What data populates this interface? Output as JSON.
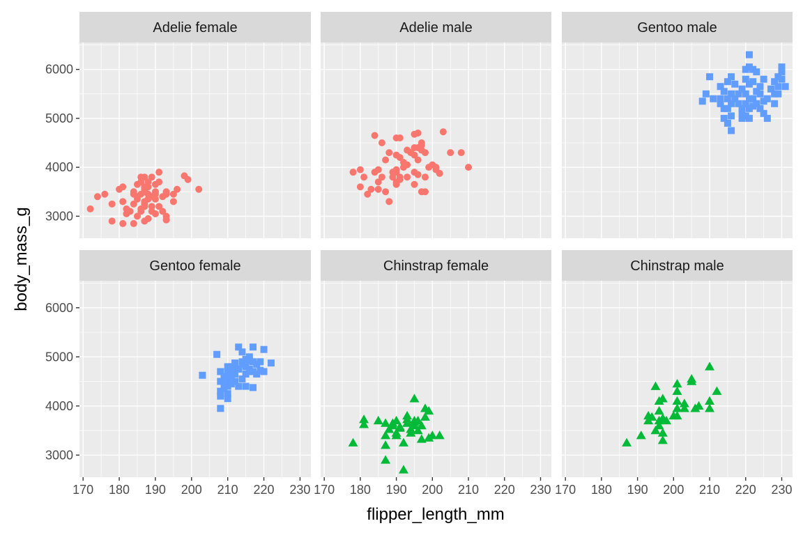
{
  "chart_data": {
    "type": "scatter",
    "xlabel": "flipper_length_mm",
    "ylabel": "body_mass_g",
    "xlim": [
      169,
      233
    ],
    "ylim": [
      2550,
      6550
    ],
    "x_ticks": [
      170,
      180,
      190,
      200,
      210,
      220,
      230
    ],
    "y_ticks": [
      3000,
      4000,
      5000,
      6000
    ],
    "grid": true,
    "legend": "none",
    "colors": {
      "Adelie": "#F8766D",
      "Gentoo": "#619CFF",
      "Chinstrap": "#00BA38"
    },
    "shapes": {
      "Adelie": "circle",
      "Gentoo": "square",
      "Chinstrap": "triangle"
    },
    "panels": [
      {
        "label": "Adelie female",
        "species": "Adelie",
        "points": [
          [
            172,
            3150
          ],
          [
            174,
            3400
          ],
          [
            176,
            3450
          ],
          [
            178,
            3250
          ],
          [
            178,
            2900
          ],
          [
            180,
            3550
          ],
          [
            181,
            3600
          ],
          [
            181,
            3300
          ],
          [
            181,
            2850
          ],
          [
            182,
            3150
          ],
          [
            182,
            3050
          ],
          [
            183,
            3100
          ],
          [
            184,
            3250
          ],
          [
            184,
            3500
          ],
          [
            184,
            3450
          ],
          [
            184,
            2850
          ],
          [
            185,
            3650
          ],
          [
            185,
            3000
          ],
          [
            185,
            3350
          ],
          [
            185,
            3400
          ],
          [
            186,
            3700
          ],
          [
            186,
            3800
          ],
          [
            186,
            3150
          ],
          [
            186,
            3450
          ],
          [
            186,
            3100
          ],
          [
            187,
            3800
          ],
          [
            187,
            3500
          ],
          [
            187,
            3300
          ],
          [
            187,
            3550
          ],
          [
            187,
            3250
          ],
          [
            187,
            3200
          ],
          [
            187,
            2900
          ],
          [
            187,
            3600
          ],
          [
            188,
            3700
          ],
          [
            188,
            3350
          ],
          [
            188,
            3450
          ],
          [
            188,
            2950
          ],
          [
            188,
            3600
          ],
          [
            189,
            3800
          ],
          [
            189,
            3200
          ],
          [
            189,
            3400
          ],
          [
            189,
            3100
          ],
          [
            190,
            3450
          ],
          [
            190,
            3500
          ],
          [
            190,
            3050
          ],
          [
            190,
            3650
          ],
          [
            190,
            3350
          ],
          [
            191,
            3900
          ],
          [
            191,
            3700
          ],
          [
            191,
            3200
          ],
          [
            192,
            3100
          ],
          [
            192,
            3400
          ],
          [
            193,
            3500
          ],
          [
            193,
            3450
          ],
          [
            193,
            3000
          ],
          [
            193,
            2925
          ],
          [
            195,
            3300
          ],
          [
            195,
            3450
          ],
          [
            196,
            3550
          ],
          [
            198,
            3825
          ],
          [
            199,
            3750
          ],
          [
            202,
            3550
          ]
        ]
      },
      {
        "label": "Adelie male",
        "species": "Adelie",
        "points": [
          [
            178,
            3900
          ],
          [
            180,
            3950
          ],
          [
            180,
            3600
          ],
          [
            181,
            3800
          ],
          [
            182,
            3450
          ],
          [
            183,
            3550
          ],
          [
            184,
            4650
          ],
          [
            184,
            3900
          ],
          [
            185,
            3950
          ],
          [
            185,
            3700
          ],
          [
            185,
            3550
          ],
          [
            186,
            3800
          ],
          [
            186,
            4500
          ],
          [
            187,
            4150
          ],
          [
            187,
            3500
          ],
          [
            188,
            3300
          ],
          [
            188,
            4300
          ],
          [
            189,
            3900
          ],
          [
            189,
            3800
          ],
          [
            190,
            4600
          ],
          [
            190,
            3950
          ],
          [
            190,
            3700
          ],
          [
            190,
            3650
          ],
          [
            190,
            4250
          ],
          [
            190,
            3900
          ],
          [
            191,
            4600
          ],
          [
            191,
            3750
          ],
          [
            191,
            3800
          ],
          [
            191,
            4200
          ],
          [
            192,
            4000
          ],
          [
            192,
            4100
          ],
          [
            193,
            4350
          ],
          [
            193,
            4050
          ],
          [
            193,
            3800
          ],
          [
            194,
            4300
          ],
          [
            195,
            4675
          ],
          [
            195,
            4400
          ],
          [
            195,
            3900
          ],
          [
            195,
            3650
          ],
          [
            195,
            4250
          ],
          [
            196,
            4700
          ],
          [
            196,
            4150
          ],
          [
            196,
            4400
          ],
          [
            196,
            3850
          ],
          [
            197,
            4450
          ],
          [
            197,
            4350
          ],
          [
            197,
            3500
          ],
          [
            197,
            4500
          ],
          [
            198,
            3500
          ],
          [
            198,
            4300
          ],
          [
            198,
            3800
          ],
          [
            199,
            4000
          ],
          [
            200,
            4050
          ],
          [
            201,
            4000
          ],
          [
            201,
            3950
          ],
          [
            202,
            3875
          ],
          [
            203,
            4725
          ],
          [
            205,
            4300
          ],
          [
            208,
            4300
          ],
          [
            210,
            4000
          ]
        ]
      },
      {
        "label": "Gentoo male",
        "species": "Gentoo",
        "points": [
          [
            208,
            5350
          ],
          [
            209,
            5500
          ],
          [
            210,
            5850
          ],
          [
            211,
            5400
          ],
          [
            213,
            5400
          ],
          [
            213,
            5650
          ],
          [
            213,
            5300
          ],
          [
            214,
            5550
          ],
          [
            214,
            5000
          ],
          [
            214,
            5200
          ],
          [
            215,
            5200
          ],
          [
            215,
            4900
          ],
          [
            215,
            5750
          ],
          [
            215,
            5400
          ],
          [
            216,
            5050
          ],
          [
            216,
            5300
          ],
          [
            216,
            5500
          ],
          [
            216,
            4750
          ],
          [
            216,
            5850
          ],
          [
            217,
            5700
          ],
          [
            217,
            5400
          ],
          [
            218,
            5300
          ],
          [
            218,
            5500
          ],
          [
            219,
            5000
          ],
          [
            219,
            5200
          ],
          [
            219,
            5600
          ],
          [
            219,
            5100
          ],
          [
            220,
            5800
          ],
          [
            220,
            5050
          ],
          [
            220,
            5300
          ],
          [
            220,
            5500
          ],
          [
            220,
            6000
          ],
          [
            221,
            5400
          ],
          [
            221,
            6300
          ],
          [
            221,
            5200
          ],
          [
            221,
            5000
          ],
          [
            221,
            5700
          ],
          [
            221,
            6050
          ],
          [
            222,
            5750
          ],
          [
            222,
            5400
          ],
          [
            222,
            5250
          ],
          [
            222,
            6000
          ],
          [
            223,
            5550
          ],
          [
            223,
            5300
          ],
          [
            223,
            5950
          ],
          [
            224,
            5650
          ],
          [
            224,
            5500
          ],
          [
            224,
            5200
          ],
          [
            225,
            5100
          ],
          [
            225,
            5800
          ],
          [
            225,
            5350
          ],
          [
            226,
            5000
          ],
          [
            226,
            5400
          ],
          [
            227,
            5600
          ],
          [
            228,
            5500
          ],
          [
            228,
            5750
          ],
          [
            228,
            5300
          ],
          [
            229,
            5650
          ],
          [
            229,
            5850
          ],
          [
            229,
            5500
          ],
          [
            230,
            5800
          ],
          [
            230,
            6050
          ],
          [
            230,
            5950
          ],
          [
            231,
            5650
          ]
        ]
      },
      {
        "label": "Gentoo female",
        "species": "Gentoo",
        "points": [
          [
            203,
            4625
          ],
          [
            207,
            5050
          ],
          [
            208,
            4500
          ],
          [
            208,
            4300
          ],
          [
            208,
            4700
          ],
          [
            208,
            3950
          ],
          [
            208,
            4200
          ],
          [
            209,
            4600
          ],
          [
            209,
            4450
          ],
          [
            209,
            4350
          ],
          [
            209,
            4550
          ],
          [
            210,
            4700
          ],
          [
            210,
            4600
          ],
          [
            210,
            4800
          ],
          [
            210,
            4400
          ],
          [
            210,
            4250
          ],
          [
            210,
            4150
          ],
          [
            210,
            4500
          ],
          [
            211,
            4800
          ],
          [
            211,
            4650
          ],
          [
            211,
            4450
          ],
          [
            211,
            4700
          ],
          [
            211,
            4600
          ],
          [
            212,
            4750
          ],
          [
            212,
            4875
          ],
          [
            212,
            4500
          ],
          [
            212,
            4650
          ],
          [
            213,
            5200
          ],
          [
            213,
            4400
          ],
          [
            213,
            4750
          ],
          [
            214,
            4850
          ],
          [
            214,
            5100
          ],
          [
            214,
            4900
          ],
          [
            214,
            4550
          ],
          [
            215,
            4400
          ],
          [
            215,
            4800
          ],
          [
            215,
            4950
          ],
          [
            215,
            4650
          ],
          [
            216,
            4925
          ],
          [
            216,
            4700
          ],
          [
            216,
            4750
          ],
          [
            216,
            5000
          ],
          [
            217,
            4375
          ],
          [
            217,
            5200
          ],
          [
            217,
            4700
          ],
          [
            217,
            4900
          ],
          [
            218,
            4850
          ],
          [
            218,
            4650
          ],
          [
            219,
            4725
          ],
          [
            219,
            4900
          ],
          [
            220,
            4700
          ],
          [
            220,
            5150
          ],
          [
            222,
            4875
          ]
        ]
      },
      {
        "label": "Chinstrap female",
        "species": "Chinstrap",
        "points": [
          [
            178,
            3250
          ],
          [
            181,
            3725
          ],
          [
            181,
            3625
          ],
          [
            185,
            3700
          ],
          [
            187,
            3650
          ],
          [
            187,
            3200
          ],
          [
            187,
            3400
          ],
          [
            187,
            2900
          ],
          [
            188,
            3525
          ],
          [
            189,
            3600
          ],
          [
            189,
            3650
          ],
          [
            190,
            3450
          ],
          [
            190,
            3700
          ],
          [
            190,
            3400
          ],
          [
            191,
            3550
          ],
          [
            191,
            3575
          ],
          [
            192,
            3250
          ],
          [
            192,
            2700
          ],
          [
            193,
            3650
          ],
          [
            193,
            3725
          ],
          [
            193,
            3800
          ],
          [
            194,
            3525
          ],
          [
            194,
            3450
          ],
          [
            195,
            4150
          ],
          [
            195,
            3600
          ],
          [
            195,
            3675
          ],
          [
            195,
            3700
          ],
          [
            196,
            3700
          ],
          [
            196,
            3500
          ],
          [
            197,
            3600
          ],
          [
            197,
            3325
          ],
          [
            198,
            3950
          ],
          [
            198,
            3775
          ],
          [
            199,
            3900
          ],
          [
            199,
            3350
          ],
          [
            200,
            3400
          ],
          [
            202,
            3400
          ]
        ]
      },
      {
        "label": "Chinstrap male",
        "species": "Chinstrap",
        "points": [
          [
            187,
            3250
          ],
          [
            191,
            3400
          ],
          [
            193,
            3800
          ],
          [
            193,
            3700
          ],
          [
            194,
            3775
          ],
          [
            195,
            4400
          ],
          [
            195,
            3500
          ],
          [
            196,
            4100
          ],
          [
            196,
            3900
          ],
          [
            196,
            3600
          ],
          [
            196,
            3700
          ],
          [
            197,
            3300
          ],
          [
            197,
            3450
          ],
          [
            197,
            3750
          ],
          [
            197,
            4150
          ],
          [
            198,
            3700
          ],
          [
            200,
            3800
          ],
          [
            201,
            4450
          ],
          [
            201,
            4300
          ],
          [
            201,
            4100
          ],
          [
            201,
            3950
          ],
          [
            201,
            3800
          ],
          [
            203,
            4050
          ],
          [
            203,
            3950
          ],
          [
            205,
            4550
          ],
          [
            205,
            4500
          ],
          [
            206,
            3950
          ],
          [
            207,
            4000
          ],
          [
            210,
            4800
          ],
          [
            210,
            4100
          ],
          [
            210,
            3950
          ],
          [
            212,
            4300
          ]
        ]
      }
    ]
  }
}
